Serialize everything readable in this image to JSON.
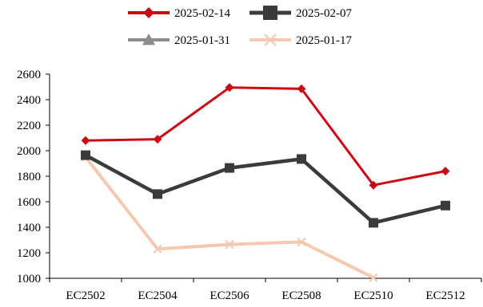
{
  "chart_data": {
    "type": "line",
    "title": "",
    "xlabel": "",
    "ylabel": "",
    "categories": [
      "EC2502",
      "EC2504",
      "EC2506",
      "EC2508",
      "EC2510",
      "EC2512"
    ],
    "ylim": [
      1000,
      2600
    ],
    "yticks": [
      1000,
      1200,
      1400,
      1600,
      1800,
      2000,
      2200,
      2400,
      2600
    ],
    "grid": false,
    "legend_position": "top",
    "series": [
      {
        "name": "2025-02-14",
        "color": "#cc0a16",
        "marker": "diamond",
        "values": [
          2080,
          2090,
          2495,
          2485,
          1730,
          1840
        ]
      },
      {
        "name": "2025-02-07",
        "color": "#3b3b3b",
        "marker": "square",
        "values": [
          1965,
          1660,
          1865,
          1935,
          1435,
          1570
        ]
      },
      {
        "name": "2025-01-31",
        "color": "#8c8c8c",
        "marker": "triangle",
        "values": [
          1960,
          null,
          null,
          null,
          null,
          null
        ]
      },
      {
        "name": "2025-01-17",
        "color": "#f5c8b0",
        "marker": "x",
        "values": [
          1950,
          1230,
          1265,
          1285,
          1005,
          null
        ]
      }
    ]
  }
}
